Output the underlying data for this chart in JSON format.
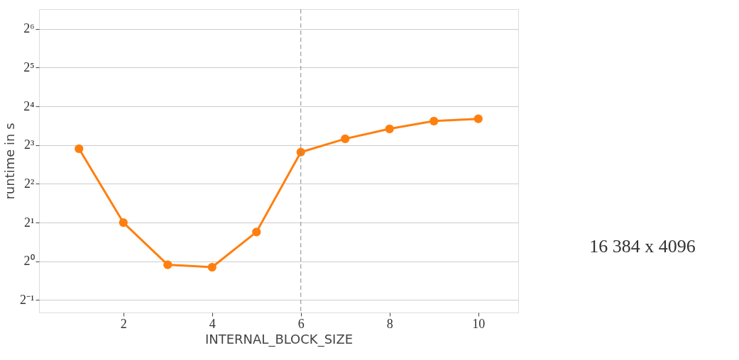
{
  "chart_data": {
    "type": "line",
    "xlabel": "INTERNAL_BLOCK_SIZE",
    "ylabel": "runtime in s",
    "x": [
      1,
      2,
      3,
      4,
      5,
      6,
      7,
      8,
      9,
      10
    ],
    "series": [
      {
        "color": "#ff7f0e",
        "values": [
          7.5,
          2.0,
          0.94,
          0.9,
          1.69,
          7.05,
          8.95,
          10.7,
          12.3,
          12.8
        ]
      }
    ],
    "log": "y",
    "xlim": [
      0.1,
      10.9
    ],
    "xticks": [
      2,
      4,
      6,
      8,
      10
    ],
    "ylim": [
      0.4,
      91
    ],
    "yticks": [
      {
        "value": 0.5,
        "label": "2⁻¹"
      },
      {
        "value": 1,
        "label": "2⁰"
      },
      {
        "value": 2,
        "label": "2¹"
      },
      {
        "value": 4,
        "label": "2²"
      },
      {
        "value": 8,
        "label": "2³"
      },
      {
        "value": 16,
        "label": "2⁴"
      },
      {
        "value": 32,
        "label": "2⁵"
      },
      {
        "value": 64,
        "label": "2⁶"
      }
    ],
    "grid": "y",
    "marker": "circle",
    "line_style": "solid",
    "ref_lines": [
      {
        "axis": "x",
        "value": 6,
        "color": "#888888",
        "line_style": "dashed"
      }
    ],
    "annotations": [
      "16 384 x 4096"
    ]
  }
}
